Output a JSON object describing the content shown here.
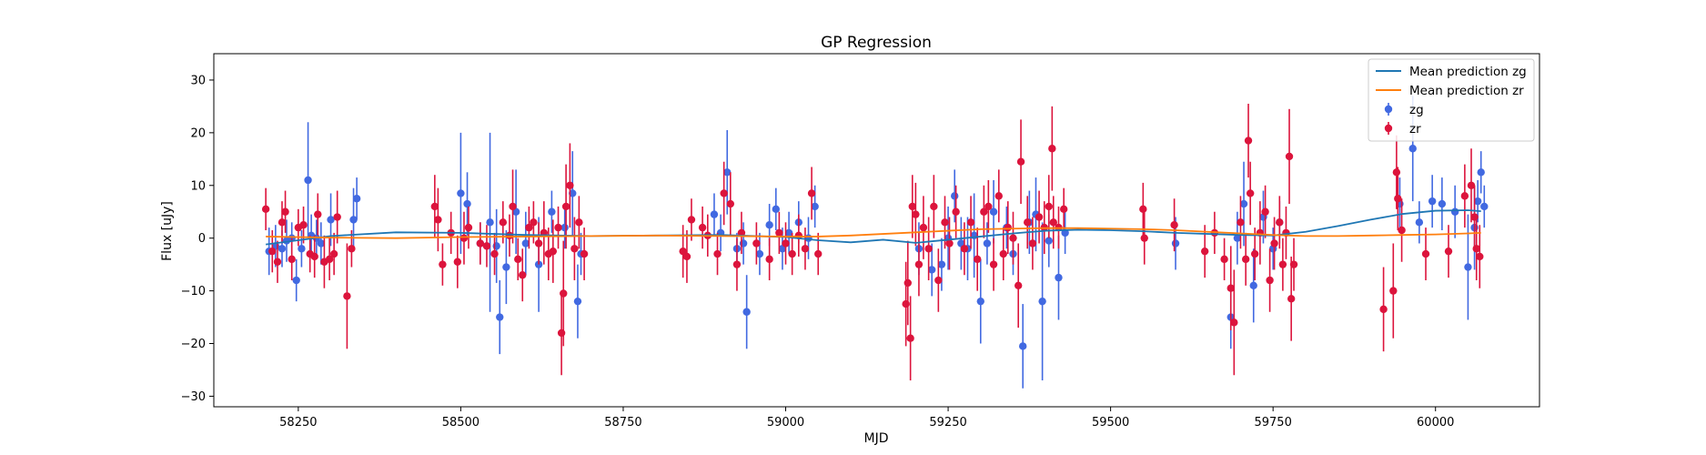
{
  "chart_data": {
    "type": "scatter",
    "title": "GP Regression",
    "xlabel": "MJD",
    "ylabel": "Flux [uJy]",
    "xlim": [
      58120,
      60160
    ],
    "ylim": [
      -32,
      35
    ],
    "xticks": [
      58250,
      58500,
      58750,
      59000,
      59250,
      59500,
      59750,
      60000
    ],
    "yticks": [
      -30,
      -20,
      -10,
      0,
      10,
      20,
      30
    ],
    "grid": false,
    "legend_position": "top-right",
    "lines": [
      {
        "name": "Mean prediction zg",
        "color": "#1f77b4",
        "x": [
          58200,
          58300,
          58400,
          58500,
          58600,
          58700,
          58800,
          58900,
          59000,
          59050,
          59100,
          59150,
          59200,
          59250,
          59300,
          59350,
          59400,
          59450,
          59500,
          59550,
          59600,
          59650,
          59700,
          59750,
          59800,
          59850,
          59900,
          59950,
          60000,
          60050,
          60070
        ],
        "y": [
          -1.2,
          0.4,
          1.1,
          1.0,
          0.6,
          0.4,
          0.5,
          0.6,
          0.2,
          -0.4,
          -0.8,
          -0.3,
          -0.9,
          -0.3,
          0.3,
          0.9,
          1.4,
          1.6,
          1.5,
          1.3,
          1.0,
          0.8,
          0.6,
          0.5,
          1.2,
          2.3,
          3.5,
          4.6,
          5.2,
          5.3,
          5.1
        ]
      },
      {
        "name": "Mean prediction zr",
        "color": "#ff7f0e",
        "x": [
          58200,
          58300,
          58400,
          58500,
          58600,
          58700,
          58800,
          58900,
          59000,
          59050,
          59100,
          59150,
          59200,
          59250,
          59300,
          59350,
          59400,
          59450,
          59500,
          59550,
          59600,
          59650,
          59700,
          59750,
          59800,
          59850,
          59900,
          59950,
          60000,
          60050,
          60070
        ],
        "y": [
          0.3,
          0.1,
          0.0,
          0.2,
          0.3,
          0.4,
          0.5,
          0.4,
          0.3,
          0.3,
          0.5,
          0.8,
          1.1,
          1.4,
          1.7,
          1.8,
          1.9,
          1.9,
          1.8,
          1.7,
          1.5,
          1.2,
          0.9,
          0.6,
          0.4,
          0.4,
          0.5,
          0.6,
          0.7,
          0.9,
          1.0
        ]
      }
    ],
    "series": [
      {
        "name": "zg",
        "color": "#4169e1",
        "points": [
          [
            58205,
            -2.5,
            4.5
          ],
          [
            58215,
            -1.5,
            4
          ],
          [
            58225,
            -2,
            3.5
          ],
          [
            58232,
            -0.5,
            4
          ],
          [
            58240,
            0,
            3
          ],
          [
            58247,
            -8,
            4
          ],
          [
            58255,
            -2,
            3.5
          ],
          [
            58265,
            11,
            11
          ],
          [
            58270,
            0.5,
            4
          ],
          [
            58278,
            0,
            3.5
          ],
          [
            58285,
            -1,
            4
          ],
          [
            58300,
            3.5,
            5
          ],
          [
            58335,
            3.5,
            6
          ],
          [
            58340,
            7.5,
            4
          ],
          [
            58500,
            8.5,
            11.5
          ],
          [
            58510,
            6.5,
            6
          ],
          [
            58530,
            -1,
            4
          ],
          [
            58545,
            3,
            17
          ],
          [
            58555,
            -1.5,
            7
          ],
          [
            58560,
            -15,
            7
          ],
          [
            58570,
            -5.5,
            7
          ],
          [
            58585,
            5,
            8
          ],
          [
            58600,
            -1,
            6
          ],
          [
            58620,
            -5,
            9
          ],
          [
            58640,
            5,
            4
          ],
          [
            58660,
            2,
            4
          ],
          [
            58672,
            8.5,
            8
          ],
          [
            58680,
            -12,
            7
          ],
          [
            58685,
            -3,
            4
          ],
          [
            58890,
            4.5,
            4
          ],
          [
            58900,
            1,
            3.5
          ],
          [
            58910,
            12.5,
            8
          ],
          [
            58925,
            -2,
            3
          ],
          [
            58935,
            -1,
            4
          ],
          [
            58940,
            -14,
            7
          ],
          [
            58960,
            -3,
            4
          ],
          [
            58975,
            2.5,
            4
          ],
          [
            58985,
            5.5,
            4
          ],
          [
            58995,
            -2,
            4
          ],
          [
            59005,
            1,
            4
          ],
          [
            59020,
            3,
            4
          ],
          [
            59035,
            0,
            4
          ],
          [
            59045,
            6,
            4
          ],
          [
            59205,
            -2,
            5
          ],
          [
            59225,
            -6,
            5
          ],
          [
            59240,
            -5,
            5
          ],
          [
            59250,
            0,
            6
          ],
          [
            59260,
            8,
            5
          ],
          [
            59270,
            -1,
            5
          ],
          [
            59280,
            -2,
            6
          ],
          [
            59290,
            0.5,
            8
          ],
          [
            59300,
            -12,
            8
          ],
          [
            59310,
            -1,
            4
          ],
          [
            59320,
            5,
            6
          ],
          [
            59340,
            2,
            4
          ],
          [
            59350,
            -3,
            4
          ],
          [
            59365,
            -20.5,
            8
          ],
          [
            59375,
            3,
            6
          ],
          [
            59385,
            4.5,
            7
          ],
          [
            59395,
            -12,
            15
          ],
          [
            59405,
            -0.5,
            5
          ],
          [
            59420,
            -7.5,
            8
          ],
          [
            59430,
            1,
            4
          ],
          [
            59600,
            -1,
            5
          ],
          [
            59685,
            -15,
            6
          ],
          [
            59695,
            0,
            5
          ],
          [
            59705,
            6.5,
            8
          ],
          [
            59720,
            -9,
            7
          ],
          [
            59735,
            4,
            5
          ],
          [
            59750,
            -2,
            4
          ],
          [
            59760,
            3,
            4
          ],
          [
            59945,
            6.5,
            5
          ],
          [
            59965,
            17,
            10
          ],
          [
            59975,
            3,
            4
          ],
          [
            59995,
            7,
            5
          ],
          [
            60010,
            6.5,
            5
          ],
          [
            60030,
            5,
            5
          ],
          [
            60050,
            -5.5,
            10
          ],
          [
            60060,
            2,
            8
          ],
          [
            60065,
            7,
            4
          ],
          [
            60070,
            12.5,
            4
          ],
          [
            60075,
            6,
            4
          ]
        ]
      },
      {
        "name": "zr",
        "color": "#dc143c",
        "points": [
          [
            58200,
            5.5,
            4
          ],
          [
            58210,
            -2.5,
            4
          ],
          [
            58218,
            -4.5,
            4
          ],
          [
            58225,
            3,
            4
          ],
          [
            58230,
            5,
            4
          ],
          [
            58240,
            -4,
            4
          ],
          [
            58250,
            2,
            3.5
          ],
          [
            58258,
            2.5,
            3.5
          ],
          [
            58268,
            -3,
            3.5
          ],
          [
            58275,
            -3.5,
            4
          ],
          [
            58280,
            4.5,
            4
          ],
          [
            58290,
            -4.5,
            5
          ],
          [
            58298,
            -4,
            4
          ],
          [
            58305,
            -3,
            4
          ],
          [
            58310,
            4,
            5
          ],
          [
            58325,
            -11,
            10
          ],
          [
            58332,
            -2,
            3.5
          ],
          [
            58460,
            6,
            6
          ],
          [
            58465,
            3.5,
            6
          ],
          [
            58472,
            -5,
            4
          ],
          [
            58485,
            1,
            4
          ],
          [
            58495,
            -4.5,
            5
          ],
          [
            58505,
            0,
            5
          ],
          [
            58512,
            2,
            4
          ],
          [
            58530,
            -1,
            4
          ],
          [
            58540,
            -1.5,
            4
          ],
          [
            58552,
            -3,
            4
          ],
          [
            58565,
            3,
            4
          ],
          [
            58575,
            0.5,
            4
          ],
          [
            58580,
            6,
            7
          ],
          [
            58588,
            -4,
            4
          ],
          [
            58595,
            -7,
            5
          ],
          [
            58605,
            2,
            4
          ],
          [
            58612,
            3,
            4
          ],
          [
            58620,
            -1,
            4
          ],
          [
            58628,
            1,
            6
          ],
          [
            58635,
            -3,
            5
          ],
          [
            58642,
            -2.5,
            6
          ],
          [
            58650,
            2,
            4
          ],
          [
            58655,
            -18,
            8
          ],
          [
            58658,
            -10.5,
            10
          ],
          [
            58662,
            6,
            8
          ],
          [
            58668,
            10,
            8
          ],
          [
            58675,
            -2,
            6
          ],
          [
            58682,
            3,
            5
          ],
          [
            58690,
            -3,
            5
          ],
          [
            58842,
            -2.5,
            5
          ],
          [
            58848,
            -3.5,
            5
          ],
          [
            58855,
            3.5,
            4
          ],
          [
            58872,
            2,
            4
          ],
          [
            58880,
            0.5,
            4
          ],
          [
            58895,
            -3,
            4
          ],
          [
            58905,
            8.5,
            6
          ],
          [
            58915,
            6.5,
            6
          ],
          [
            58925,
            -5,
            5
          ],
          [
            58932,
            1,
            4
          ],
          [
            58955,
            -1,
            4
          ],
          [
            58975,
            -4,
            4
          ],
          [
            58990,
            1,
            4
          ],
          [
            59000,
            -1,
            4
          ],
          [
            59010,
            -3,
            4
          ],
          [
            59020,
            0.5,
            4
          ],
          [
            59030,
            -2,
            4
          ],
          [
            59040,
            8.5,
            5
          ],
          [
            59050,
            -3,
            4
          ],
          [
            59185,
            -12.5,
            8
          ],
          [
            59188,
            -8.5,
            8
          ],
          [
            59192,
            -19,
            8
          ],
          [
            59195,
            6,
            6
          ],
          [
            59200,
            4.5,
            6
          ],
          [
            59205,
            -5,
            6
          ],
          [
            59212,
            2,
            6
          ],
          [
            59220,
            -2,
            6
          ],
          [
            59228,
            6,
            6
          ],
          [
            59235,
            -8,
            6
          ],
          [
            59245,
            3,
            5
          ],
          [
            59252,
            -1,
            5
          ],
          [
            59262,
            5,
            5
          ],
          [
            59275,
            -2,
            5
          ],
          [
            59285,
            3,
            5
          ],
          [
            59295,
            -4,
            6
          ],
          [
            59305,
            5,
            5
          ],
          [
            59312,
            6,
            5
          ],
          [
            59320,
            -5,
            5
          ],
          [
            59328,
            8,
            5
          ],
          [
            59335,
            -3,
            5
          ],
          [
            59342,
            2,
            5
          ],
          [
            59350,
            0,
            5
          ],
          [
            59358,
            -9,
            8
          ],
          [
            59362,
            14.5,
            8
          ],
          [
            59372,
            3,
            5
          ],
          [
            59380,
            -1,
            5
          ],
          [
            59390,
            4,
            5
          ],
          [
            59398,
            2,
            5
          ],
          [
            59405,
            6,
            6
          ],
          [
            59410,
            17,
            8
          ],
          [
            59412,
            3,
            5
          ],
          [
            59420,
            2,
            4
          ],
          [
            59428,
            5.5,
            4
          ],
          [
            59550,
            5.5,
            5
          ],
          [
            59552,
            0,
            5
          ],
          [
            59598,
            2.5,
            5
          ],
          [
            59645,
            -2.5,
            5
          ],
          [
            59660,
            1,
            4
          ],
          [
            59675,
            -4,
            4
          ],
          [
            59685,
            -9.5,
            8
          ],
          [
            59690,
            -16,
            10
          ],
          [
            59700,
            3,
            5
          ],
          [
            59708,
            -4,
            5
          ],
          [
            59712,
            18.5,
            7
          ],
          [
            59715,
            8.5,
            6
          ],
          [
            59722,
            -3,
            5
          ],
          [
            59730,
            1,
            6
          ],
          [
            59738,
            5,
            5
          ],
          [
            59745,
            -8,
            6
          ],
          [
            59752,
            -1,
            5
          ],
          [
            59760,
            3,
            5
          ],
          [
            59765,
            -5,
            5
          ],
          [
            59770,
            1,
            5
          ],
          [
            59775,
            15.5,
            9
          ],
          [
            59778,
            -11.5,
            8
          ],
          [
            59782,
            -5,
            5
          ],
          [
            59920,
            -13.5,
            8
          ],
          [
            59935,
            -10,
            9
          ],
          [
            59940,
            12.5,
            7
          ],
          [
            59942,
            7.5,
            6
          ],
          [
            59948,
            1.5,
            6
          ],
          [
            59985,
            -3,
            5
          ],
          [
            60020,
            -2.5,
            5
          ],
          [
            60045,
            8,
            6
          ],
          [
            60055,
            10,
            7
          ],
          [
            60060,
            4,
            6
          ],
          [
            60063,
            -2,
            6
          ],
          [
            60068,
            -3.5,
            6
          ]
        ]
      }
    ]
  }
}
